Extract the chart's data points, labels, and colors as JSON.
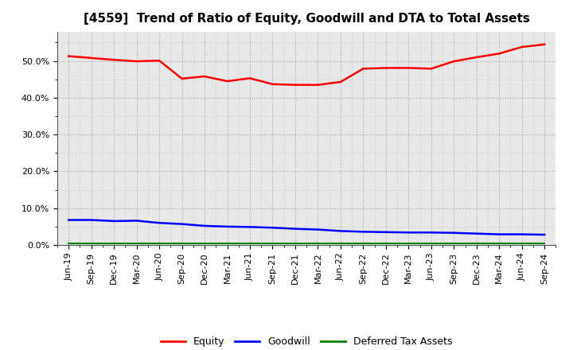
{
  "title": "[4559]  Trend of Ratio of Equity, Goodwill and DTA to Total Assets",
  "x_labels": [
    "Jun-19",
    "Sep-19",
    "Dec-19",
    "Mar-20",
    "Jun-20",
    "Sep-20",
    "Dec-20",
    "Mar-21",
    "Jun-21",
    "Sep-21",
    "Dec-21",
    "Mar-22",
    "Jun-22",
    "Sep-22",
    "Dec-22",
    "Mar-23",
    "Jun-23",
    "Sep-23",
    "Dec-23",
    "Mar-24",
    "Jun-24",
    "Sep-24"
  ],
  "equity": [
    0.513,
    0.508,
    0.503,
    0.499,
    0.501,
    0.452,
    0.458,
    0.445,
    0.453,
    0.437,
    0.435,
    0.435,
    0.443,
    0.479,
    0.481,
    0.481,
    0.479,
    0.499,
    0.51,
    0.52,
    0.538,
    0.545
  ],
  "goodwill": [
    0.068,
    0.068,
    0.065,
    0.066,
    0.06,
    0.057,
    0.052,
    0.05,
    0.049,
    0.047,
    0.044,
    0.042,
    0.038,
    0.036,
    0.035,
    0.034,
    0.034,
    0.033,
    0.031,
    0.029,
    0.029,
    0.028
  ],
  "dta": [
    0.005,
    0.005,
    0.005,
    0.005,
    0.005,
    0.005,
    0.005,
    0.005,
    0.005,
    0.005,
    0.005,
    0.005,
    0.005,
    0.005,
    0.005,
    0.005,
    0.005,
    0.005,
    0.005,
    0.005,
    0.005,
    0.005
  ],
  "equity_color": "#ff0000",
  "goodwill_color": "#0000ff",
  "dta_color": "#008000",
  "ylim": [
    0.0,
    0.58
  ],
  "yticks": [
    0.0,
    0.1,
    0.2,
    0.3,
    0.4,
    0.5
  ],
  "background_color": "#ffffff",
  "plot_bg_color": "#e8e8e8",
  "grid_color": "#888888",
  "legend_labels": [
    "Equity",
    "Goodwill",
    "Deferred Tax Assets"
  ],
  "title_fontsize": 11,
  "tick_fontsize": 8,
  "legend_fontsize": 9
}
